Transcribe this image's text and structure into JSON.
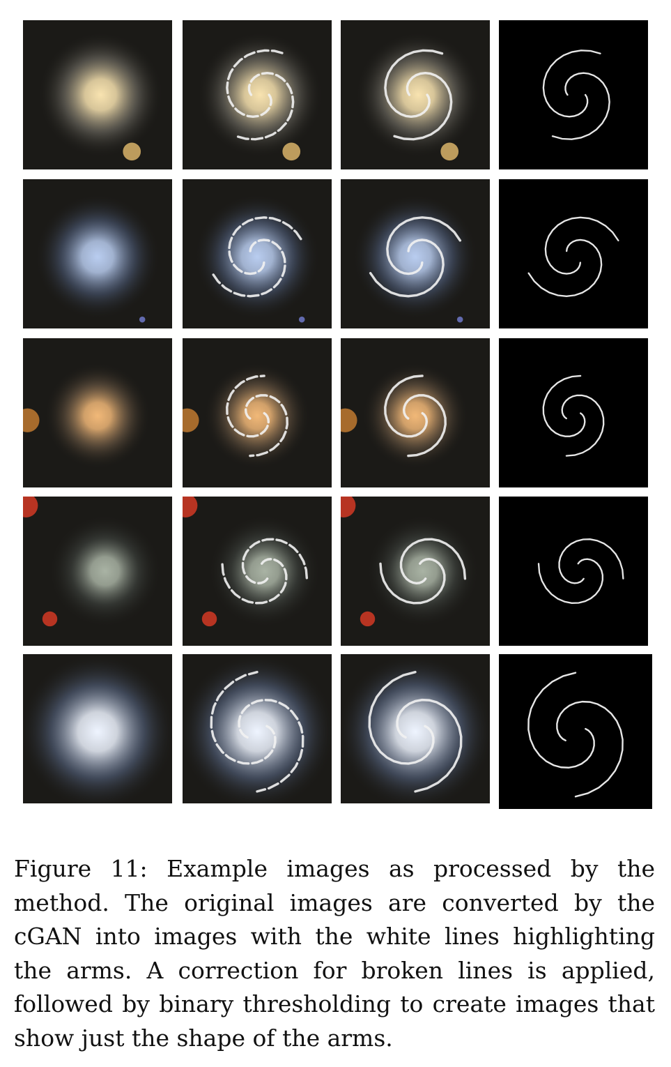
{
  "figure": {
    "columns": [
      "original",
      "cgan-output",
      "corrected",
      "binary-threshold"
    ],
    "rows": [
      {
        "galaxy": "yellow-core spiral with companion source"
      },
      {
        "galaxy": "blue face-on spiral"
      },
      {
        "galaxy": "orange bulge spiral"
      },
      {
        "galaxy": "faint spiral with red foreground stars"
      },
      {
        "galaxy": "bright blue grand-design spiral"
      }
    ]
  },
  "caption": {
    "lines": [
      "Figure 11:  Example images as processed by the",
      "method.  The original images are converted by the",
      "cGAN into images with the white lines highlighting",
      "the arms.  A correction for broken lines is applied,",
      "followed by binary thresholding to create images that",
      "show just the shape of the arms."
    ]
  },
  "colors": {
    "sky": "#1b1a17",
    "arm_line": "#f2f2f2",
    "binary_bg": "#000000",
    "row1_core": "#f8e3b0",
    "row2_core": "#b9cdf0",
    "row3_core": "#f1b878",
    "row4_core": "#a9b3a4",
    "row5_core": "#eef4ff",
    "red_star": "#d23a24"
  }
}
